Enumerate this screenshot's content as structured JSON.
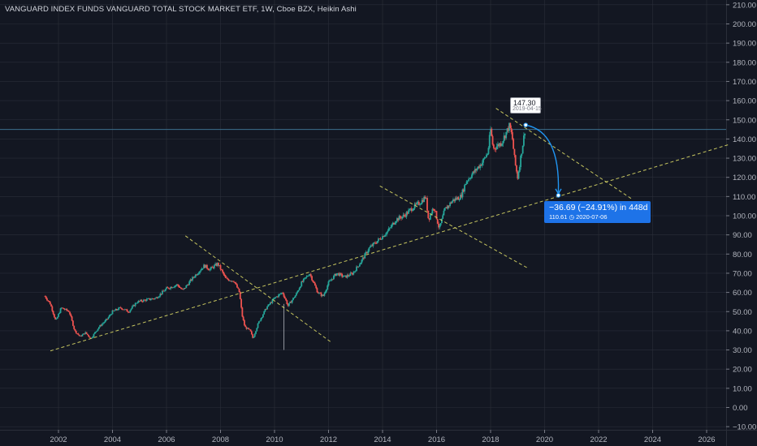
{
  "header": {
    "title": "VANGUARD INDEX FUNDS VANGUARD TOTAL STOCK MARKET ETF, 1W, Cboe BZX, Heikin Ashi"
  },
  "annotations": {
    "peak_price": "147.30",
    "peak_date": "2019-04-15",
    "measure_main": "−36.69 (−24.91%) in 448d",
    "measure_price": "110.61",
    "measure_date_icon": "clock-icon",
    "measure_date": "2020-07-06"
  },
  "colors": {
    "background": "#131722",
    "grid": "#2a2e39",
    "candle_up": "#26a69a",
    "candle_down": "#ef5350",
    "trendline": "#e6e46a",
    "horizontal_line": "#3d6f8e",
    "measure_arrow": "#2196f3",
    "measure_box": "#1e73e8"
  },
  "chart_data": {
    "type": "candlestick",
    "title": "VANGUARD INDEX FUNDS VANGUARD TOTAL STOCK MARKET ETF, 1W, Cboe BZX, Heikin Ashi",
    "x_ticks": [
      "2002",
      "2004",
      "2006",
      "2008",
      "2010",
      "2012",
      "2014",
      "2016",
      "2018",
      "2020",
      "2022",
      "2024",
      "2026"
    ],
    "y_ticks": [
      "210.00",
      "200.00",
      "190.00",
      "180.00",
      "170.00",
      "160.00",
      "150.00",
      "140.00",
      "130.00",
      "120.00",
      "110.00",
      "100.00",
      "90.00",
      "80.00",
      "70.00",
      "60.00",
      "50.00",
      "40.00",
      "30.00",
      "20.00",
      "10.00",
      "0.00",
      "−10.00"
    ],
    "y_range": [
      -10,
      210
    ],
    "x_range": [
      2000.9,
      2027.0
    ],
    "y_axis_side": "right",
    "grid": true,
    "price_path": [
      [
        2001.5,
        58
      ],
      [
        2001.7,
        54
      ],
      [
        2001.9,
        45
      ],
      [
        2002.1,
        52
      ],
      [
        2002.4,
        50
      ],
      [
        2002.6,
        40
      ],
      [
        2002.8,
        37
      ],
      [
        2003.0,
        39
      ],
      [
        2003.2,
        36
      ],
      [
        2003.5,
        42
      ],
      [
        2003.8,
        46
      ],
      [
        2004.0,
        50
      ],
      [
        2004.3,
        52
      ],
      [
        2004.6,
        50
      ],
      [
        2004.9,
        55
      ],
      [
        2005.2,
        56
      ],
      [
        2005.6,
        57
      ],
      [
        2006.0,
        62
      ],
      [
        2006.4,
        64
      ],
      [
        2006.6,
        61
      ],
      [
        2007.0,
        68
      ],
      [
        2007.4,
        74
      ],
      [
        2007.6,
        72
      ],
      [
        2007.9,
        75
      ],
      [
        2008.2,
        67
      ],
      [
        2008.5,
        66
      ],
      [
        2008.7,
        60
      ],
      [
        2008.8,
        48
      ],
      [
        2008.9,
        42
      ],
      [
        2009.1,
        40
      ],
      [
        2009.2,
        36
      ],
      [
        2009.4,
        44
      ],
      [
        2009.7,
        52
      ],
      [
        2010.0,
        57
      ],
      [
        2010.3,
        60
      ],
      [
        2010.5,
        53
      ],
      [
        2010.8,
        59
      ],
      [
        2011.0,
        65
      ],
      [
        2011.3,
        70
      ],
      [
        2011.6,
        60
      ],
      [
        2011.8,
        58
      ],
      [
        2012.0,
        65
      ],
      [
        2012.3,
        70
      ],
      [
        2012.6,
        68
      ],
      [
        2012.9,
        70
      ],
      [
        2013.2,
        76
      ],
      [
        2013.5,
        83
      ],
      [
        2013.9,
        88
      ],
      [
        2014.2,
        92
      ],
      [
        2014.5,
        98
      ],
      [
        2014.8,
        100
      ],
      [
        2015.1,
        104
      ],
      [
        2015.4,
        107
      ],
      [
        2015.6,
        110
      ],
      [
        2015.7,
        98
      ],
      [
        2015.9,
        105
      ],
      [
        2016.1,
        93
      ],
      [
        2016.3,
        103
      ],
      [
        2016.6,
        108
      ],
      [
        2016.9,
        110
      ],
      [
        2017.1,
        118
      ],
      [
        2017.4,
        123
      ],
      [
        2017.7,
        128
      ],
      [
        2017.9,
        133
      ],
      [
        2018.0,
        145
      ],
      [
        2018.1,
        135
      ],
      [
        2018.4,
        138
      ],
      [
        2018.7,
        147
      ],
      [
        2018.8,
        141
      ],
      [
        2018.9,
        128
      ],
      [
        2019.0,
        120
      ],
      [
        2019.2,
        138
      ],
      [
        2019.3,
        147.3
      ]
    ],
    "spike_2010": {
      "x": 2010.35,
      "low": 30,
      "high": 54
    },
    "horizontal_line": 145,
    "trendlines": [
      {
        "from": [
          2001.7,
          29.5
        ],
        "to": [
          2026.8,
          137
        ],
        "style": "dashed"
      },
      {
        "from": [
          2006.7,
          89.5
        ],
        "to": [
          2012.1,
          34
        ],
        "style": "dashed"
      },
      {
        "from": [
          2013.9,
          115.5
        ],
        "to": [
          2019.4,
          72.5
        ],
        "style": "dashed"
      },
      {
        "from": [
          2018.2,
          156
        ],
        "to": [
          2023.2,
          109
        ],
        "style": "dashed"
      }
    ],
    "measure": {
      "start": [
        2019.3,
        147.3
      ],
      "end": [
        2020.51,
        110.61
      ],
      "change": -36.69,
      "change_pct": -24.91,
      "days": 448
    }
  }
}
